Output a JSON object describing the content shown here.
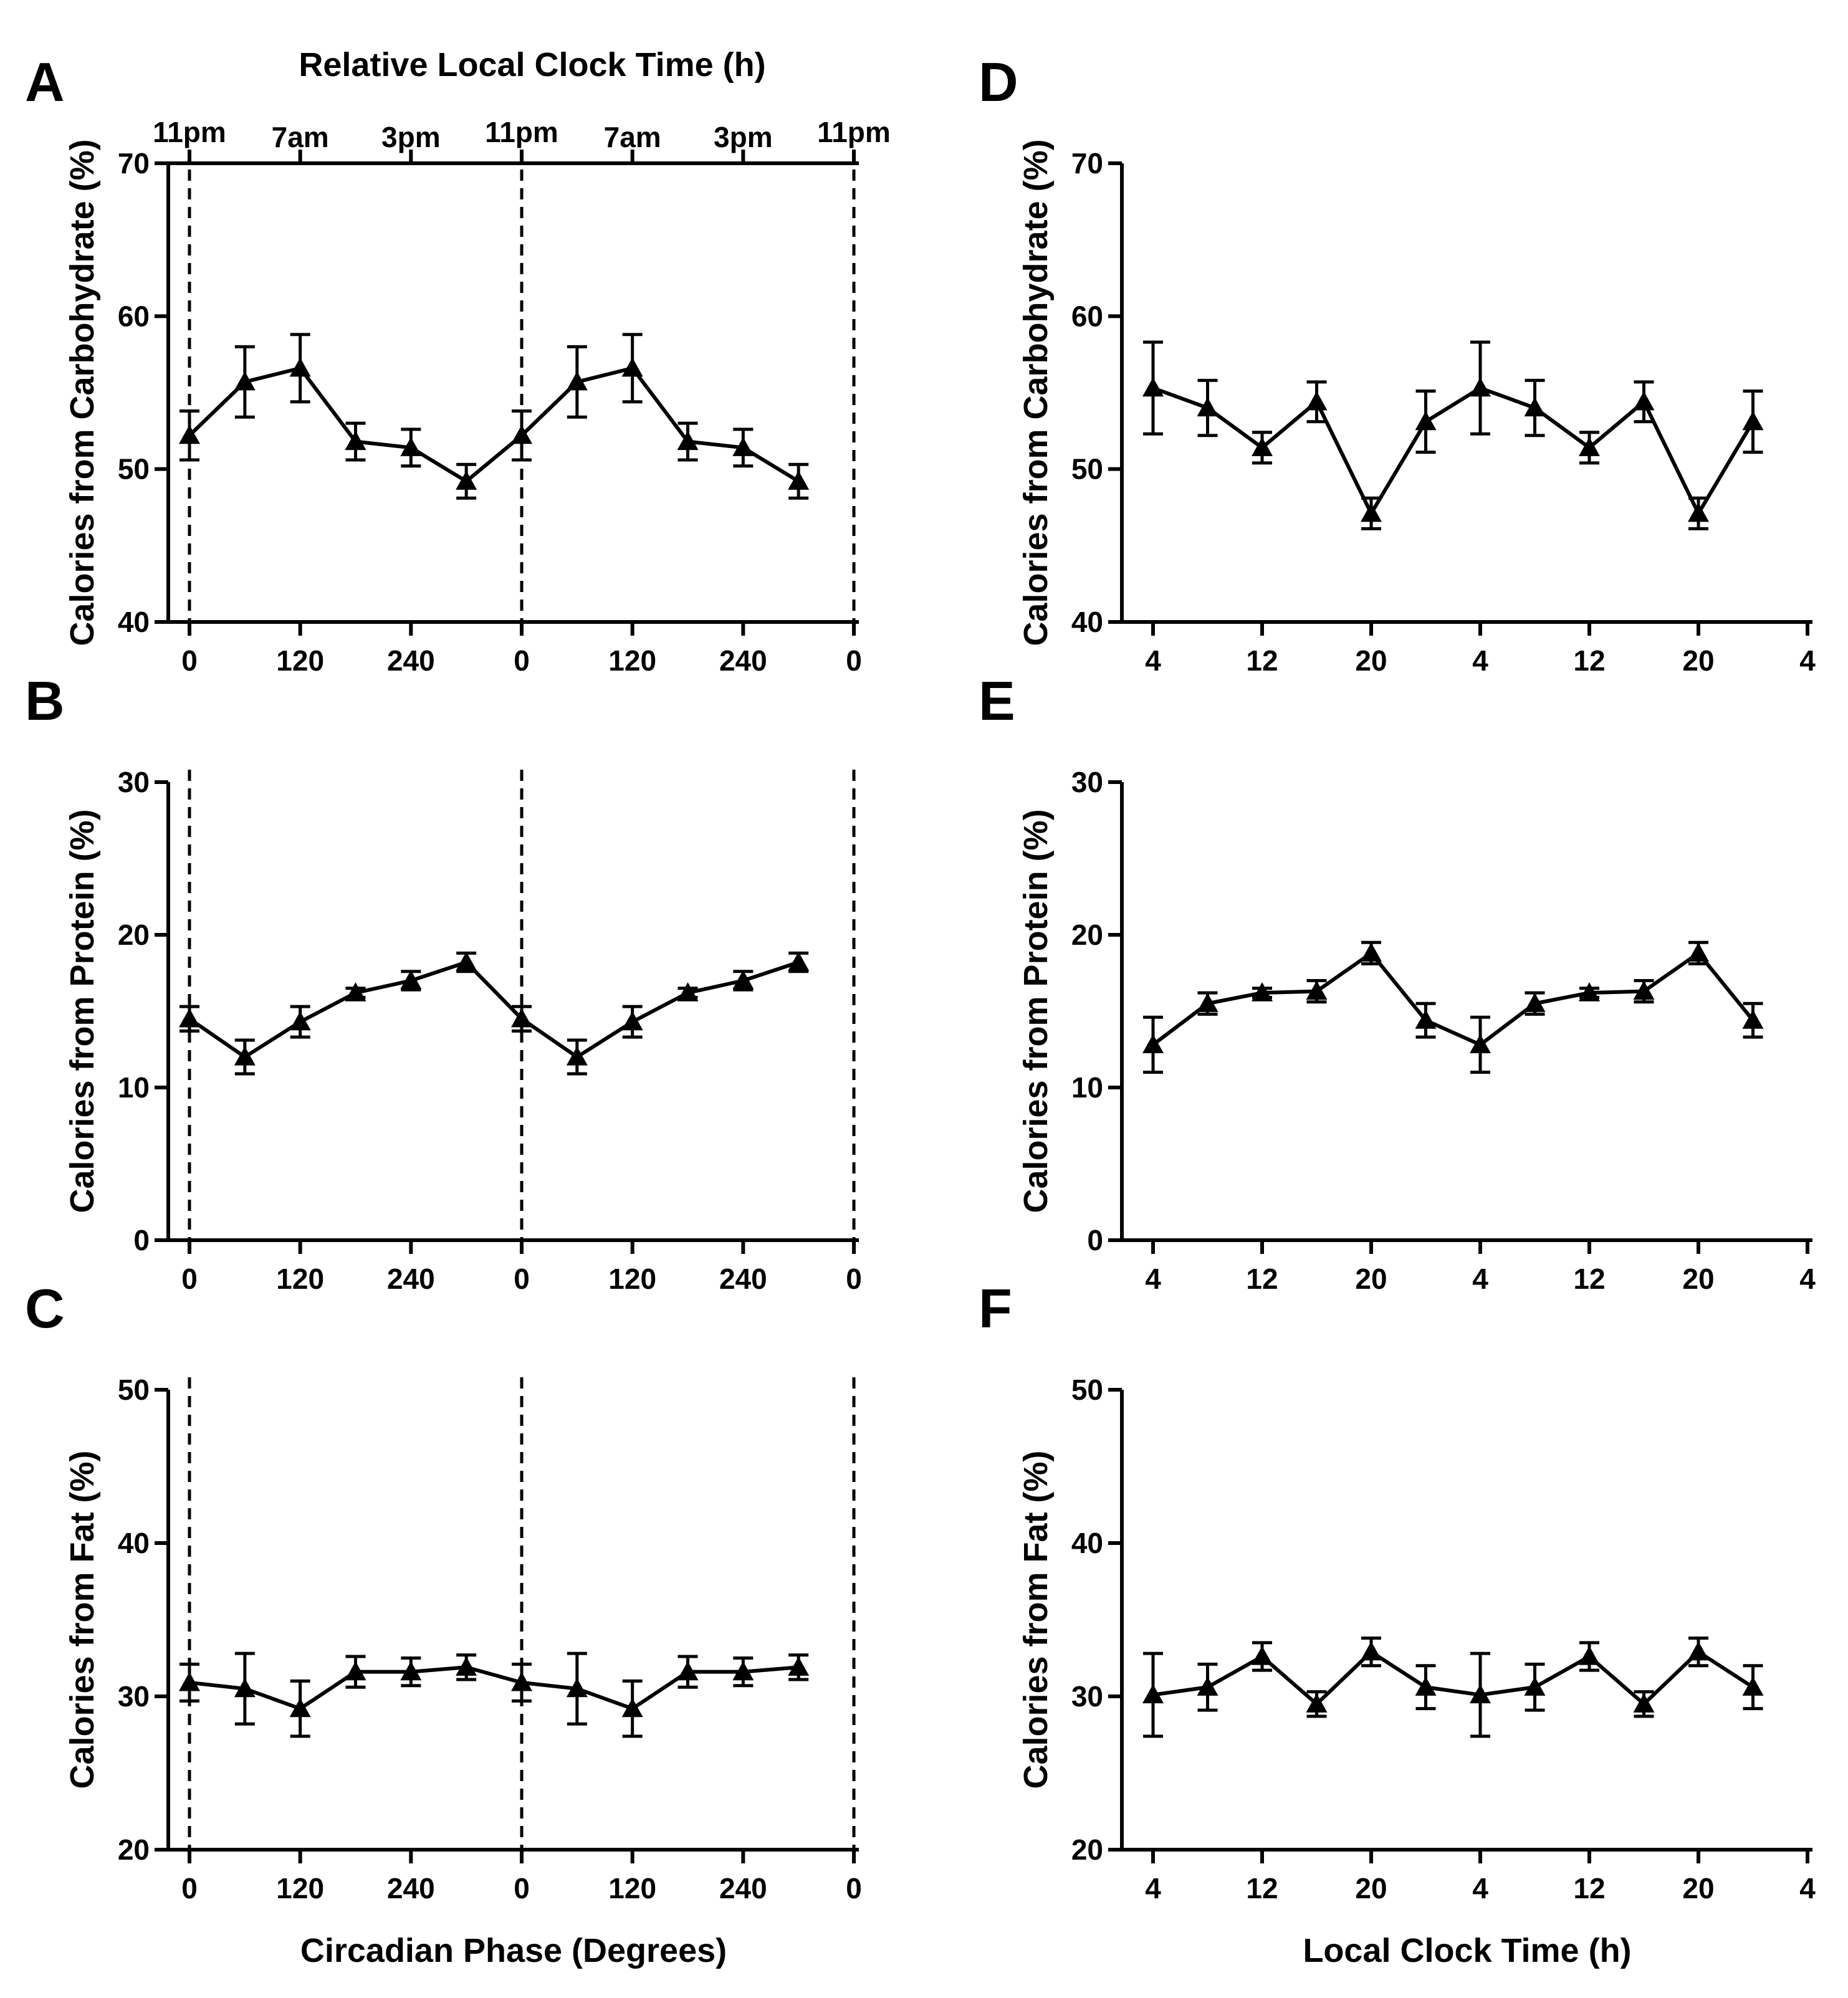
{
  "chart_data": [
    {
      "id": "A",
      "type": "line",
      "panel_label": "A",
      "ylabel": "Calories from Carbohydrate (%)",
      "ylim": [
        40,
        70
      ],
      "yticks": [
        40,
        50,
        60,
        70
      ],
      "xlabel": "",
      "xlim": [
        0,
        720
      ],
      "xtick_values": [
        0,
        120,
        240,
        360,
        480,
        600,
        720
      ],
      "xtick_labels": [
        "0",
        "120",
        "240",
        "0",
        "120",
        "240",
        "0"
      ],
      "top_axis_title": "Relative Local Clock Time (h)",
      "top_tick_values": [
        0,
        120,
        240,
        360,
        480,
        600,
        720
      ],
      "top_tick_labels": [
        "11pm",
        "7am",
        "3pm",
        "11pm",
        "7am",
        "3pm",
        "11pm"
      ],
      "dashed_lines_x": [
        0,
        360,
        720
      ],
      "marker": "triangle",
      "series": [
        {
          "x": [
            0,
            60,
            120,
            180,
            240,
            300,
            360,
            420,
            480,
            540,
            600,
            660
          ],
          "y": [
            52.2,
            55.7,
            56.6,
            51.8,
            51.4,
            49.2,
            52.2,
            55.7,
            56.6,
            51.8,
            51.4,
            49.2
          ],
          "err": [
            1.6,
            2.3,
            2.2,
            1.2,
            1.2,
            1.1,
            1.6,
            2.3,
            2.2,
            1.2,
            1.2,
            1.1
          ]
        }
      ]
    },
    {
      "id": "B",
      "type": "line",
      "panel_label": "B",
      "ylabel": "Calories from Protein  (%)",
      "ylim": [
        0,
        30
      ],
      "yticks": [
        0,
        10,
        20,
        30
      ],
      "xlabel": "",
      "xlim": [
        0,
        720
      ],
      "xtick_values": [
        0,
        120,
        240,
        360,
        480,
        600,
        720
      ],
      "xtick_labels": [
        "0",
        "120",
        "240",
        "0",
        "120",
        "240",
        "0"
      ],
      "dashed_lines_x": [
        0,
        360,
        720
      ],
      "marker": "triangle",
      "series": [
        {
          "x": [
            0,
            60,
            120,
            180,
            240,
            300,
            360,
            420,
            480,
            540,
            600,
            660
          ],
          "y": [
            14.5,
            12.0,
            14.3,
            16.2,
            17.0,
            18.2,
            14.5,
            12.0,
            14.3,
            16.2,
            17.0,
            18.2
          ],
          "err": [
            0.8,
            1.1,
            1.0,
            0.3,
            0.6,
            0.6,
            0.8,
            1.1,
            1.0,
            0.3,
            0.6,
            0.6
          ]
        }
      ]
    },
    {
      "id": "C",
      "type": "line",
      "panel_label": "C",
      "ylabel": "Calories from Fat (%)",
      "ylim": [
        20,
        50
      ],
      "yticks": [
        20,
        30,
        40,
        50
      ],
      "xlabel": "Circadian Phase (Degrees)",
      "xlim": [
        0,
        720
      ],
      "xtick_values": [
        0,
        120,
        240,
        360,
        480,
        600,
        720
      ],
      "xtick_labels": [
        "0",
        "120",
        "240",
        "0",
        "120",
        "240",
        "0"
      ],
      "dashed_lines_x": [
        0,
        360,
        720
      ],
      "marker": "triangle",
      "series": [
        {
          "x": [
            0,
            60,
            120,
            180,
            240,
            300,
            360,
            420,
            480,
            540,
            600,
            660
          ],
          "y": [
            30.9,
            30.5,
            29.2,
            31.6,
            31.6,
            31.9,
            30.9,
            30.5,
            29.2,
            31.6,
            31.6,
            31.9
          ],
          "err": [
            1.2,
            2.3,
            1.8,
            1.0,
            0.9,
            0.8,
            1.2,
            2.3,
            1.8,
            1.0,
            0.9,
            0.8
          ]
        }
      ]
    },
    {
      "id": "D",
      "type": "line",
      "panel_label": "D",
      "ylabel": "Calories from Carbohydrate (%)",
      "ylim": [
        40,
        70
      ],
      "yticks": [
        40,
        50,
        60,
        70
      ],
      "xlabel": "",
      "xlim": [
        4,
        52
      ],
      "xtick_values": [
        4,
        12,
        20,
        28,
        36,
        44,
        52
      ],
      "xtick_labels": [
        "4",
        "12",
        "20",
        "4",
        "12",
        "20",
        "4"
      ],
      "marker": "triangle",
      "series": [
        {
          "x": [
            4,
            8,
            12,
            16,
            20,
            24,
            28,
            32,
            36,
            40,
            44,
            48
          ],
          "y": [
            55.3,
            54.0,
            51.4,
            54.4,
            47.1,
            53.1,
            55.3,
            54.0,
            51.4,
            54.4,
            47.1,
            53.1
          ],
          "err": [
            3.0,
            1.8,
            1.0,
            1.3,
            1.0,
            2.0,
            3.0,
            1.8,
            1.0,
            1.3,
            1.0,
            2.0
          ]
        }
      ]
    },
    {
      "id": "E",
      "type": "line",
      "panel_label": "E",
      "ylabel": "Calories from Protein  (%)",
      "ylim": [
        0,
        30
      ],
      "yticks": [
        0,
        10,
        20,
        30
      ],
      "xlabel": "",
      "xlim": [
        4,
        52
      ],
      "xtick_values": [
        4,
        12,
        20,
        28,
        36,
        44,
        52
      ],
      "xtick_labels": [
        "4",
        "12",
        "20",
        "4",
        "12",
        "20",
        "4"
      ],
      "marker": "triangle",
      "series": [
        {
          "x": [
            4,
            8,
            12,
            16,
            20,
            24,
            28,
            32,
            36,
            40,
            44,
            48
          ],
          "y": [
            12.8,
            15.5,
            16.2,
            16.3,
            18.8,
            14.4,
            12.8,
            15.5,
            16.2,
            16.3,
            18.8,
            14.4
          ],
          "err": [
            1.8,
            0.7,
            0.3,
            0.7,
            0.7,
            1.1,
            1.8,
            0.7,
            0.3,
            0.7,
            0.7,
            1.1
          ]
        }
      ]
    },
    {
      "id": "F",
      "type": "line",
      "panel_label": "F",
      "ylabel": "Calories from Fat (%)",
      "ylim": [
        20,
        50
      ],
      "yticks": [
        20,
        30,
        40,
        50
      ],
      "xlabel": "Local Clock Time (h)",
      "xlim": [
        4,
        52
      ],
      "xtick_values": [
        4,
        12,
        20,
        28,
        36,
        44,
        52
      ],
      "xtick_labels": [
        "4",
        "12",
        "20",
        "4",
        "12",
        "20",
        "4"
      ],
      "marker": "triangle",
      "series": [
        {
          "x": [
            4,
            8,
            12,
            16,
            20,
            24,
            28,
            32,
            36,
            40,
            44,
            48
          ],
          "y": [
            30.1,
            30.6,
            32.6,
            29.5,
            32.9,
            30.6,
            30.1,
            30.6,
            32.6,
            29.5,
            32.9,
            30.6
          ],
          "err": [
            2.7,
            1.5,
            0.9,
            0.8,
            0.9,
            1.4,
            2.7,
            1.5,
            0.9,
            0.8,
            0.9,
            1.4
          ]
        }
      ]
    }
  ]
}
